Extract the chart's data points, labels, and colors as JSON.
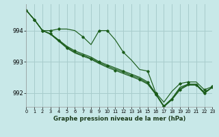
{
  "title": "Graphe pression niveau de la mer (hPa)",
  "background_color": "#c8e8e8",
  "grid_color": "#a8cccc",
  "line_color": "#1a5c1a",
  "xlim": [
    0,
    23
  ],
  "ylim": [
    991.55,
    994.85
  ],
  "yticks": [
    992,
    993,
    994
  ],
  "xticks": [
    0,
    1,
    2,
    3,
    4,
    5,
    6,
    7,
    8,
    9,
    10,
    11,
    12,
    13,
    14,
    15,
    16,
    17,
    18,
    19,
    20,
    21,
    22,
    23
  ],
  "series": [
    [
      994.65,
      994.35,
      994.0,
      994.0,
      994.05,
      994.05,
      994.0,
      993.8,
      993.55,
      994.0,
      994.0,
      993.7,
      993.3,
      993.05,
      992.75,
      992.7,
      992.0,
      991.7,
      992.05,
      992.3,
      992.35,
      992.35,
      992.1,
      992.2
    ],
    [
      994.65,
      994.35,
      994.0,
      993.9,
      993.7,
      993.5,
      993.35,
      993.25,
      993.15,
      993.0,
      992.9,
      992.8,
      992.7,
      992.6,
      992.5,
      992.35,
      991.98,
      991.58,
      991.82,
      992.18,
      992.28,
      992.28,
      992.02,
      992.18
    ],
    [
      994.65,
      994.35,
      994.0,
      993.88,
      993.66,
      993.44,
      993.28,
      993.18,
      993.08,
      992.94,
      992.82,
      992.72,
      992.62,
      992.52,
      992.42,
      992.28,
      991.95,
      991.55,
      991.78,
      992.1,
      992.25,
      992.25,
      991.98,
      992.18
    ],
    [
      994.65,
      994.35,
      994.0,
      993.89,
      993.68,
      993.47,
      993.31,
      993.21,
      993.11,
      992.97,
      992.86,
      992.76,
      992.66,
      992.56,
      992.46,
      992.31,
      991.96,
      991.56,
      991.8,
      992.14,
      992.26,
      992.26,
      992.0,
      992.18
    ]
  ],
  "marker_every": [
    [
      0,
      2,
      4,
      6,
      9,
      10,
      12,
      15,
      16,
      19,
      20,
      22
    ],
    [
      3,
      6,
      9,
      12,
      15,
      18,
      21
    ],
    [
      2,
      5,
      8,
      11,
      14,
      17,
      20,
      23
    ],
    [
      1,
      4,
      7,
      10,
      13,
      16,
      19,
      22
    ]
  ]
}
